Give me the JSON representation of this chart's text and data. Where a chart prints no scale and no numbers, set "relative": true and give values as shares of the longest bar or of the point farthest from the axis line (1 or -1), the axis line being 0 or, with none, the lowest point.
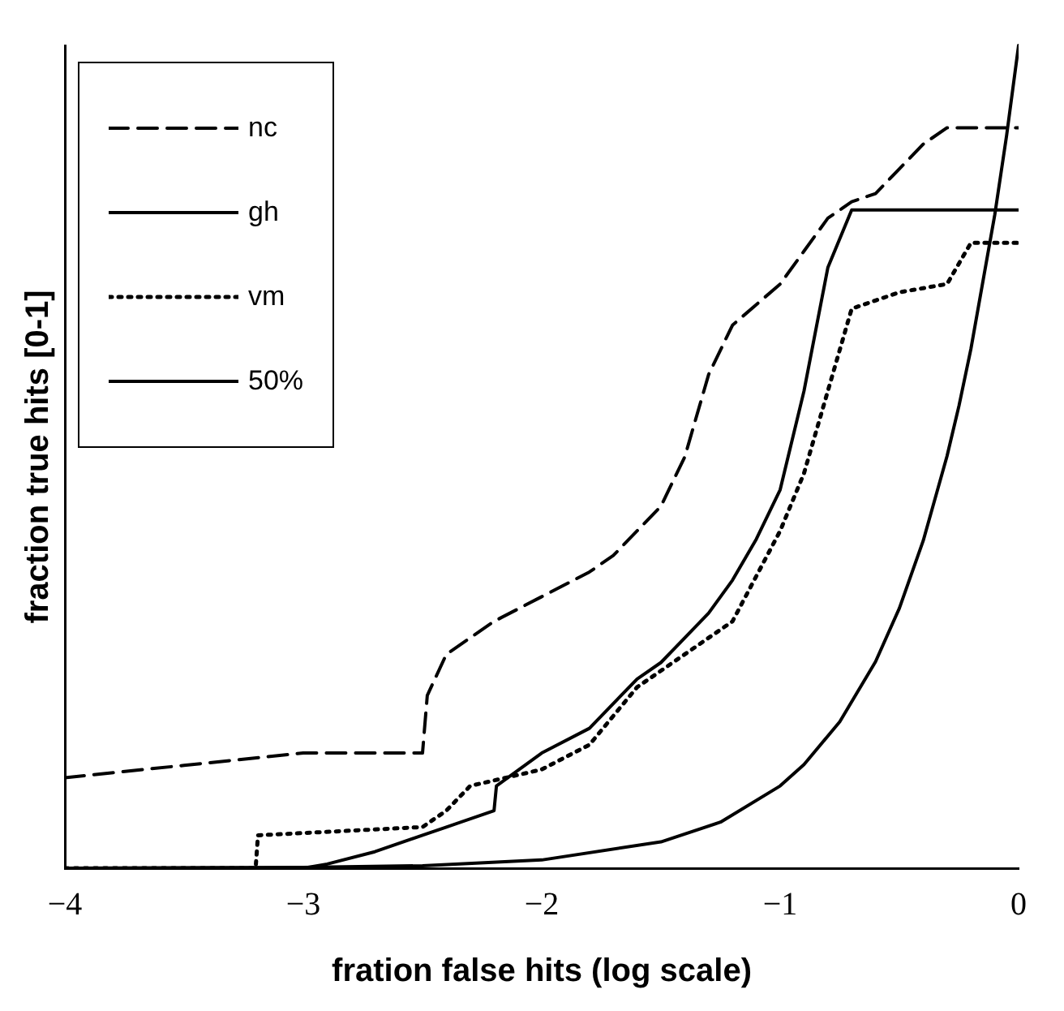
{
  "chart_data": {
    "type": "line",
    "xlabel": "fration false hits (log scale)",
    "ylabel": "fraction true hits [0-1]",
    "relative": true,
    "xlim": [
      -4,
      0
    ],
    "xticks": [
      {
        "value": -4,
        "label": "−4"
      },
      {
        "value": -3,
        "label": "−3"
      },
      {
        "value": -2,
        "label": "−2"
      },
      {
        "value": -1,
        "label": "−1"
      },
      {
        "value": 0,
        "label": "0"
      }
    ],
    "legend": "top left",
    "grid": false,
    "marker": "none",
    "series": [
      {
        "name": "nc",
        "color": "#000000",
        "line_style": "dashed",
        "x": [
          -4,
          -3.5,
          -3,
          -2.5,
          -2.48,
          -2.4,
          -2.2,
          -2,
          -1.8,
          -1.7,
          -1.5,
          -1.4,
          -1.3,
          -1.2,
          -1,
          -0.9,
          -0.8,
          -0.7,
          -0.6,
          -0.5,
          -0.4,
          -0.3,
          0
        ],
        "values": [
          0.11,
          0.125,
          0.14,
          0.14,
          0.21,
          0.26,
          0.3,
          0.33,
          0.36,
          0.38,
          0.44,
          0.5,
          0.6,
          0.66,
          0.71,
          0.75,
          0.79,
          0.81,
          0.82,
          0.85,
          0.88,
          0.9,
          0.9
        ]
      },
      {
        "name": "gh",
        "color": "#000000",
        "line_style": "solid",
        "x": [
          -4,
          -3,
          -2.9,
          -2.7,
          -2.5,
          -2.4,
          -2.2,
          -2.19,
          -2,
          -1.8,
          -1.6,
          -1.5,
          -1.4,
          -1.3,
          -1.2,
          -1.1,
          -1,
          -0.9,
          -0.8,
          -0.7,
          -0.65,
          0
        ],
        "values": [
          0,
          0,
          0.005,
          0.02,
          0.04,
          0.05,
          0.07,
          0.1,
          0.14,
          0.17,
          0.23,
          0.25,
          0.28,
          0.31,
          0.35,
          0.4,
          0.46,
          0.58,
          0.73,
          0.8,
          0.8,
          0.8
        ]
      },
      {
        "name": "vm",
        "color": "#000000",
        "line_style": "dotted",
        "x": [
          -4,
          -3.2,
          -3.19,
          -2.5,
          -2.4,
          -2.3,
          -2,
          -1.8,
          -1.6,
          -1.4,
          -1.2,
          -1,
          -0.9,
          -0.8,
          -0.7,
          -0.6,
          -0.5,
          -0.3,
          -0.2,
          0
        ],
        "values": [
          0,
          0,
          0.04,
          0.05,
          0.07,
          0.1,
          0.12,
          0.15,
          0.22,
          0.26,
          0.3,
          0.41,
          0.48,
          0.58,
          0.68,
          0.69,
          0.7,
          0.71,
          0.76,
          0.76
        ]
      },
      {
        "name": "50%",
        "color": "#000000",
        "line_style": "solid",
        "x": [
          -4,
          -3,
          -2.5,
          -2,
          -1.5,
          -1.25,
          -1,
          -0.9,
          -0.75,
          -0.6,
          -0.5,
          -0.4,
          -0.3,
          -0.25,
          -0.2,
          -0.1,
          -0.05,
          0
        ],
        "values": [
          0.0001,
          0.001,
          0.003,
          0.01,
          0.032,
          0.056,
          0.1,
          0.126,
          0.178,
          0.251,
          0.316,
          0.398,
          0.501,
          0.562,
          0.631,
          0.794,
          0.891,
          1
        ]
      }
    ]
  }
}
